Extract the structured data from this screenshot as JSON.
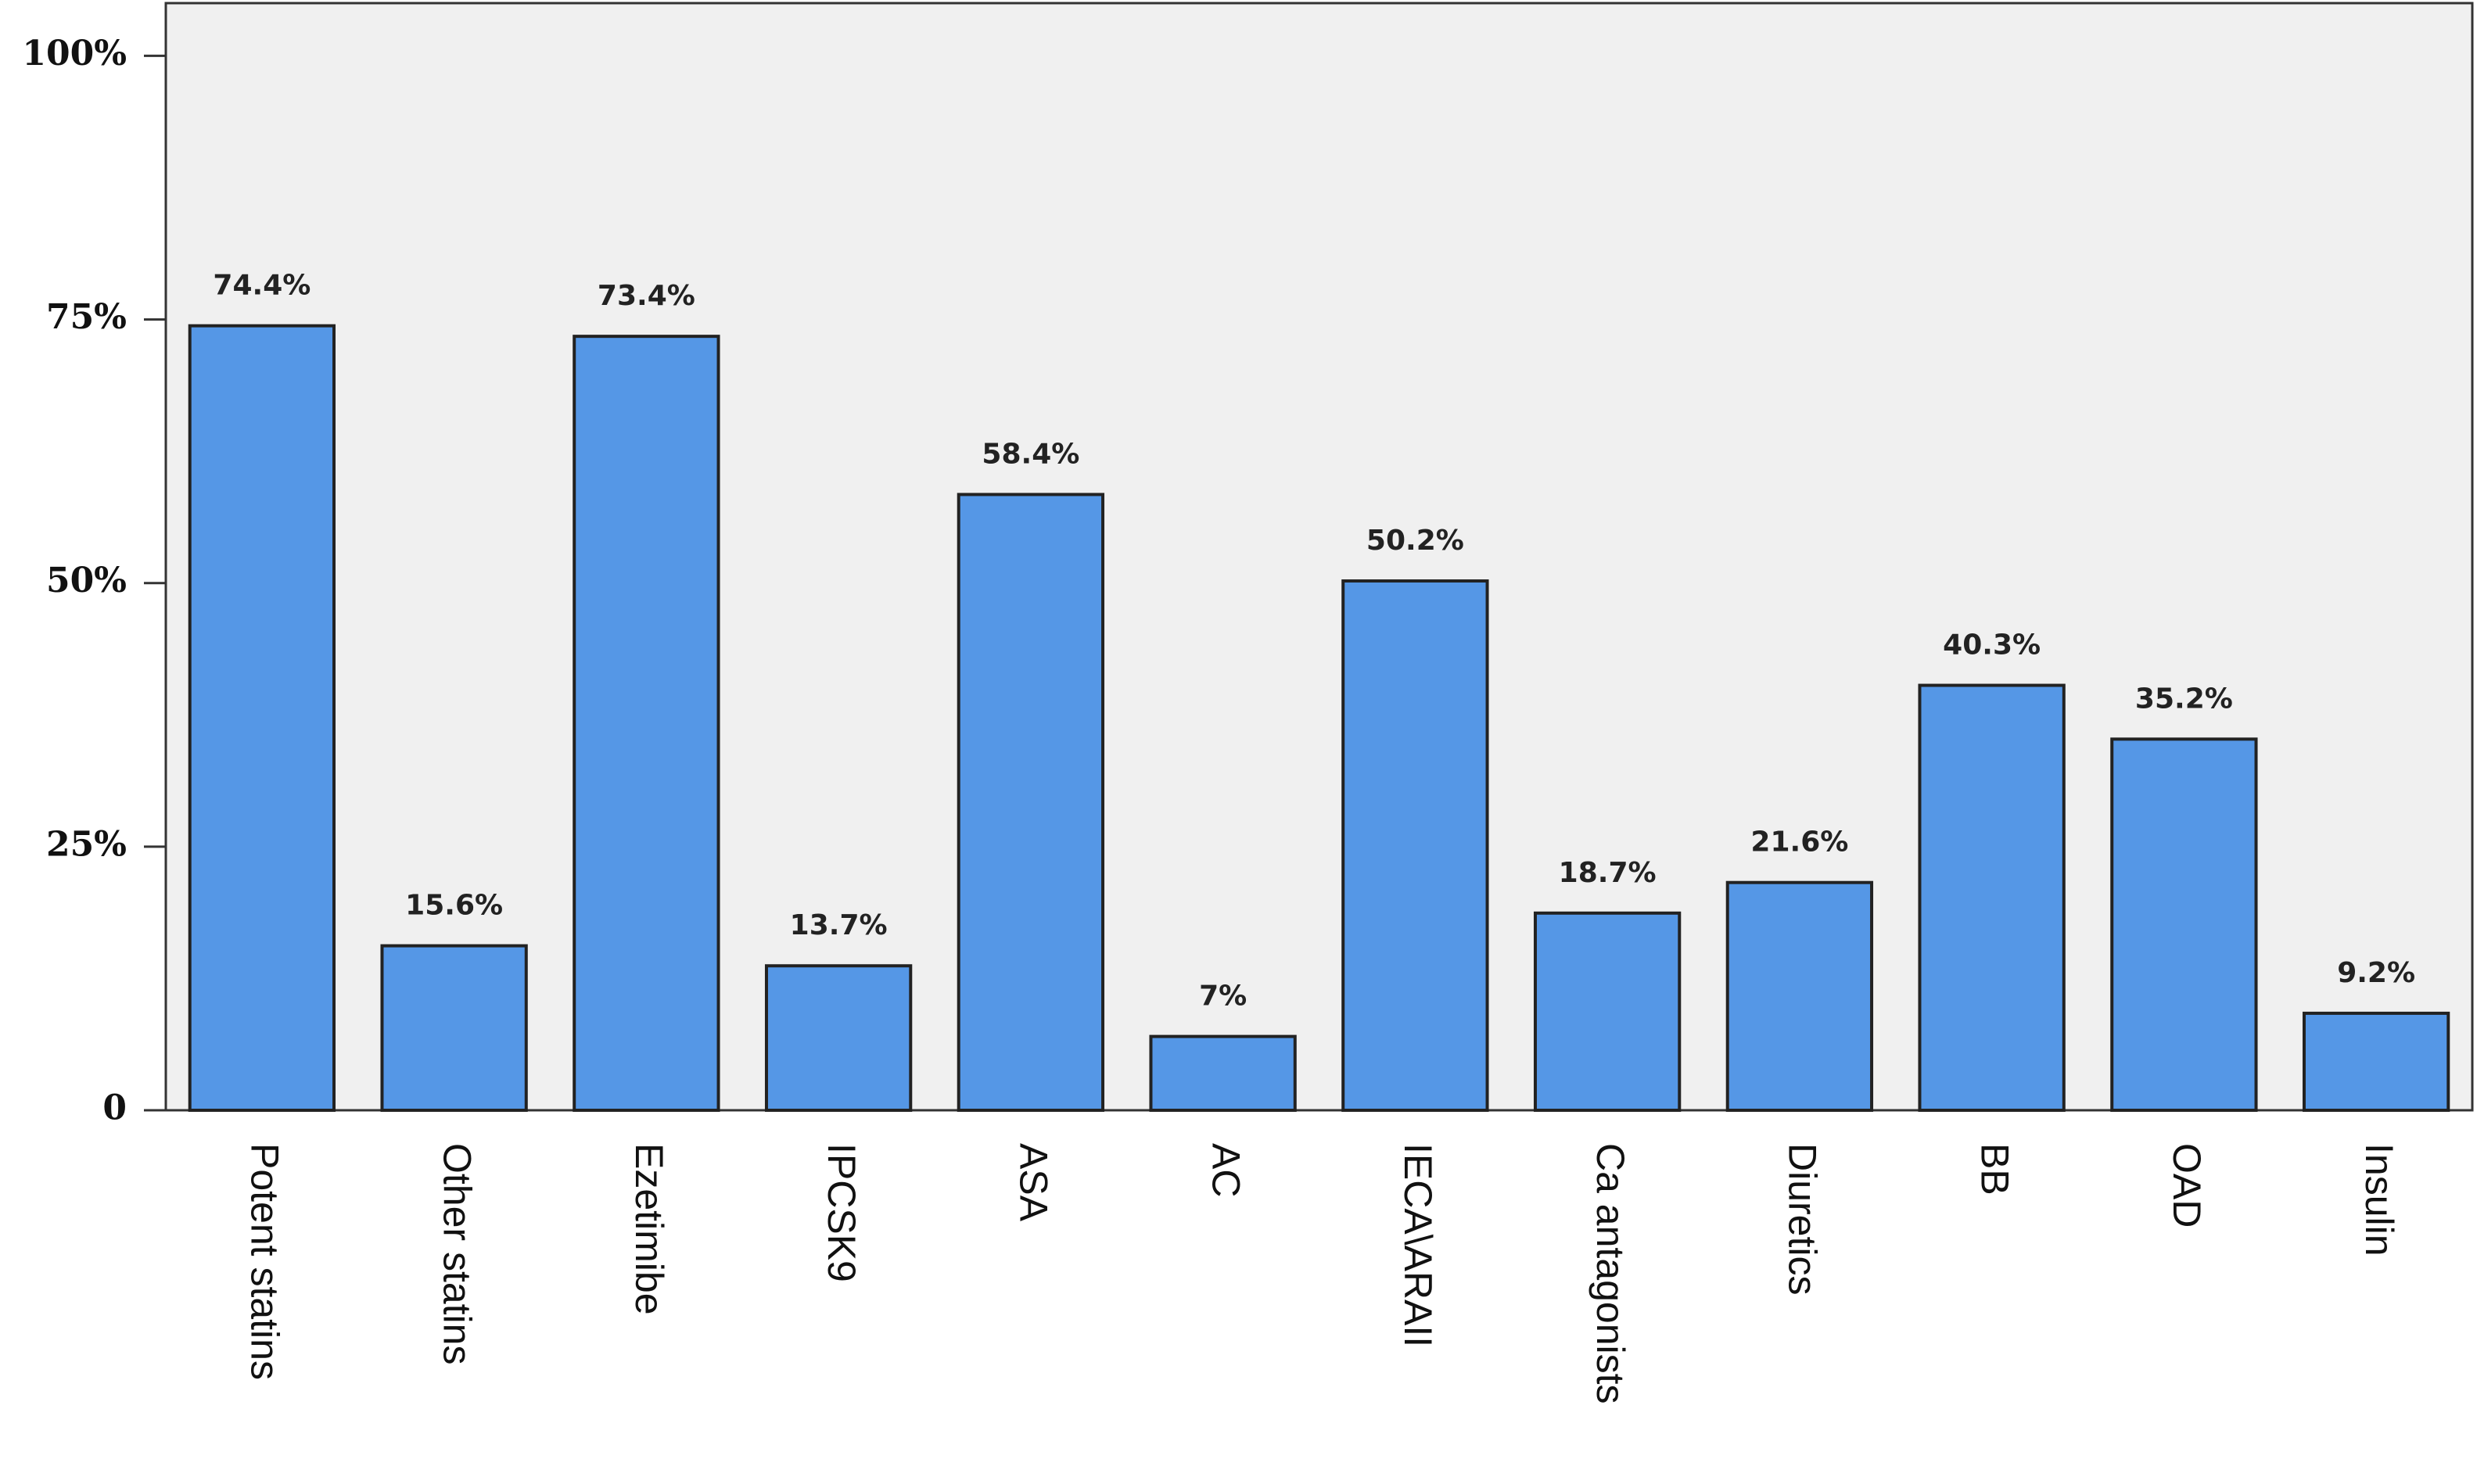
{
  "chart_data": {
    "type": "bar",
    "categories": [
      "Potent statins",
      "Other statins",
      "Ezetimibe",
      "IPCSK9",
      "ASA",
      "AC",
      "IECA\\ARAII",
      "Ca antagonists",
      "Diuretics",
      "BB",
      "OAD",
      "Insulin"
    ],
    "values": [
      74.4,
      15.6,
      73.4,
      13.7,
      58.4,
      7,
      50.2,
      18.7,
      21.6,
      40.3,
      35.2,
      9.2
    ],
    "value_labels": [
      "74.4%",
      "15.6%",
      "73.4%",
      "13.7%",
      "58.4%",
      "7%",
      "50.2%",
      "18.7%",
      "21.6%",
      "40.3%",
      "35.2%",
      "9.2%"
    ],
    "color": "#5597e6",
    "ylim": [
      0,
      105
    ],
    "yticks": [
      0,
      {
        "value": 25,
        "label": "25%"
      },
      {
        "value": 50,
        "label": "50%"
      },
      {
        "value": 75,
        "label": "75%"
      },
      {
        "value": 100,
        "label": "100%"
      }
    ],
    "grid": false
  }
}
